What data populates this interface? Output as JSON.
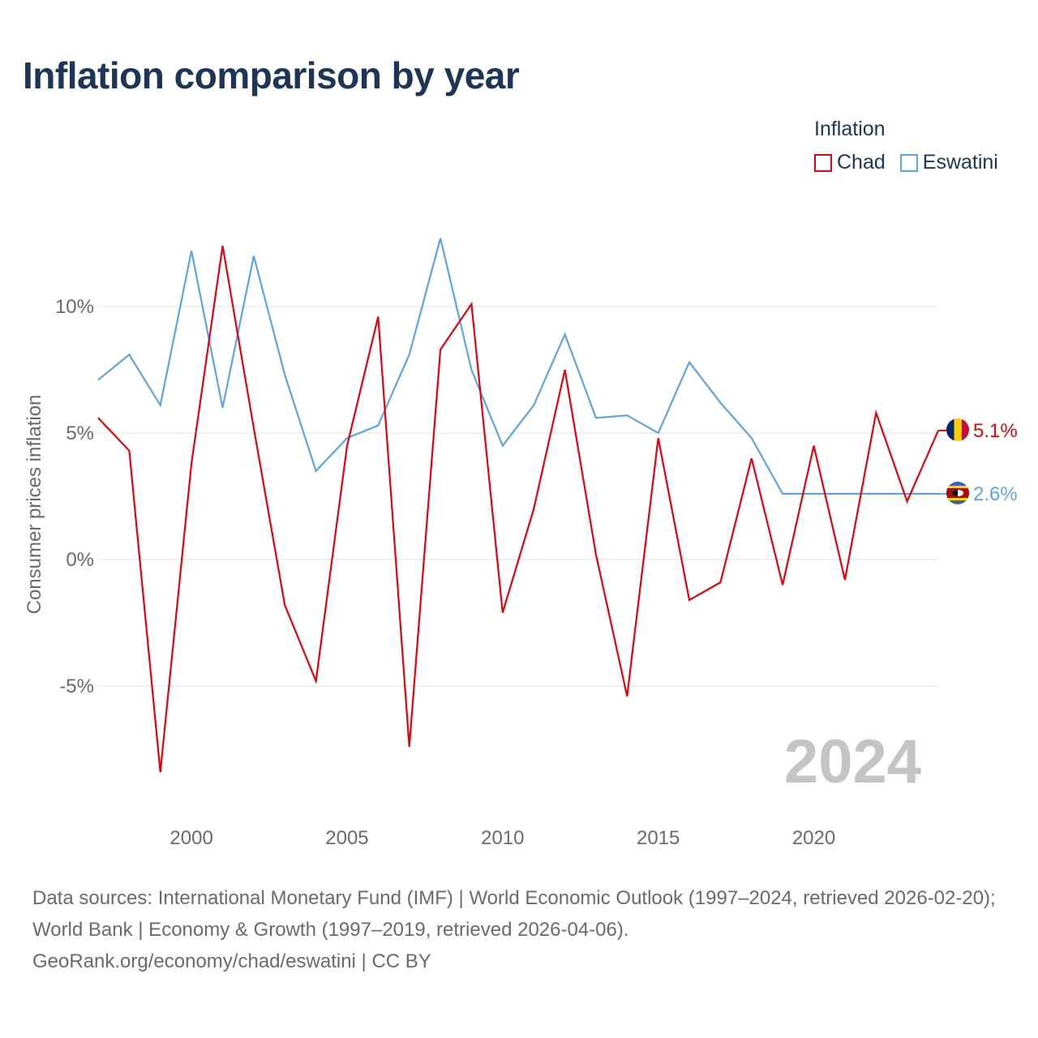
{
  "title": "Inflation comparison by year",
  "legend": {
    "title": "Inflation",
    "items": [
      {
        "label": "Chad",
        "color": "#e8000b"
      },
      {
        "label": "Eswatini",
        "color": "#5aa5e6"
      }
    ]
  },
  "watermark_year": "2024",
  "footer": {
    "sources": "Data sources: International Monetary Fund (IMF) | World Economic Outlook (1997–2024, retrieved 2026-02-20); World Bank | Economy & Growth (1997–2019, retrieved 2026-04-06).",
    "credit": "GeoRank.org/economy/chad/eswatini | CC BY"
  },
  "chart_data": {
    "type": "line",
    "title": "Inflation comparison by year",
    "xlabel": "",
    "ylabel": "Consumer prices inflation",
    "xlim": [
      1997,
      2024
    ],
    "ylim": [
      -10,
      15
    ],
    "x_ticks": [
      2000,
      2005,
      2010,
      2015,
      2020
    ],
    "x_tick_labels": [
      "2000",
      "2005",
      "2010",
      "2015",
      "2020"
    ],
    "y_ticks": [
      -5,
      0,
      5,
      10
    ],
    "y_tick_labels": [
      "-5%",
      "0%",
      "5%",
      "10%"
    ],
    "grid": true,
    "legend_position": "top-right",
    "x": [
      1997,
      1998,
      1999,
      2000,
      2001,
      2002,
      2003,
      2004,
      2005,
      2006,
      2007,
      2008,
      2009,
      2010,
      2011,
      2012,
      2013,
      2014,
      2015,
      2016,
      2017,
      2018,
      2019,
      2020,
      2021,
      2022,
      2023,
      2024
    ],
    "series": [
      {
        "name": "Chad",
        "color": "#e8000b",
        "end_label": "5.1%",
        "flag": "chad-flag",
        "values": [
          5.6,
          4.3,
          -8.4,
          3.8,
          12.4,
          5.2,
          -1.8,
          -4.8,
          4.5,
          9.6,
          -7.4,
          8.3,
          10.1,
          -2.1,
          2.0,
          7.5,
          0.2,
          -5.4,
          4.8,
          -1.6,
          -0.9,
          4.0,
          -1.0,
          4.5,
          -0.8,
          5.8,
          2.3,
          5.1
        ]
      },
      {
        "name": "Eswatini",
        "color": "#5aa5e6",
        "end_label": "2.6%",
        "flag": "eswatini-flag",
        "values": [
          7.1,
          8.1,
          6.1,
          12.2,
          6.0,
          12.0,
          7.3,
          3.5,
          4.8,
          5.3,
          8.1,
          12.7,
          7.5,
          4.5,
          6.1,
          8.9,
          5.6,
          5.7,
          5.0,
          7.8,
          6.2,
          4.8,
          2.6,
          2.6,
          2.6,
          2.6,
          2.6,
          2.6
        ]
      }
    ]
  }
}
